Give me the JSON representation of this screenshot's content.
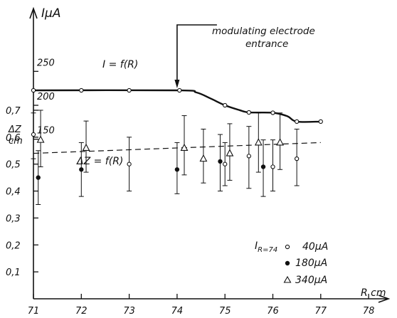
{
  "chart_data": {
    "type": "scatter",
    "x_axis": {
      "label": "R cm",
      "ticks": [
        "71",
        "72",
        "73",
        "74",
        "75",
        "76",
        "77",
        "78"
      ],
      "range": [
        71,
        78
      ]
    },
    "current_axis": {
      "label": "IμA",
      "ticks": [
        "150",
        "200",
        "250"
      ],
      "range": [
        140,
        262
      ]
    },
    "dz_axis": {
      "label_line1": "ΔZ",
      "label_line2": "cm",
      "ticks": [
        "0,1",
        "0,2",
        "0,3",
        "0,4",
        "0,5",
        "0,6",
        "0,7"
      ],
      "range": [
        0,
        0.7
      ]
    },
    "annotations": {
      "current_curve": "I = f(R)",
      "dz_curve": "ΔZ = f(R)",
      "arrow_line1": "modulating electrode",
      "arrow_line2": "entrance",
      "arrow_x": 74
    },
    "current_series": {
      "name": "I = f(R)",
      "points": [
        {
          "x": 71,
          "y": 222
        },
        {
          "x": 72,
          "y": 222
        },
        {
          "x": 73,
          "y": 222
        },
        {
          "x": 74.05,
          "y": 222
        },
        {
          "x": 75,
          "y": 200
        },
        {
          "x": 75.5,
          "y": 189.5
        },
        {
          "x": 76,
          "y": 189
        },
        {
          "x": 76.5,
          "y": 176
        },
        {
          "x": 77,
          "y": 176
        }
      ],
      "curve": [
        [
          71,
          222
        ],
        [
          74,
          222
        ],
        [
          74.4,
          219
        ],
        [
          74.7,
          210
        ],
        [
          75,
          200
        ],
        [
          75.3,
          193
        ],
        [
          75.5,
          189.5
        ],
        [
          76,
          189
        ],
        [
          76.3,
          184
        ],
        [
          76.5,
          176
        ],
        [
          77,
          176
        ]
      ]
    },
    "trend": {
      "x": [
        71,
        77
      ],
      "y": [
        0.54,
        0.58
      ]
    },
    "dz_series": [
      {
        "name": "40μA",
        "marker": "circle-open",
        "points": [
          {
            "x": 71,
            "y": 0.61,
            "lo": 0.52,
            "hi": 0.69
          },
          {
            "x": 73,
            "y": 0.5,
            "lo": 0.4,
            "hi": 0.6
          },
          {
            "x": 75,
            "y": 0.5,
            "lo": 0.42,
            "hi": 0.58
          },
          {
            "x": 75.5,
            "y": 0.53,
            "lo": 0.41,
            "hi": 0.64
          },
          {
            "x": 76,
            "y": 0.49,
            "lo": 0.4,
            "hi": 0.59
          },
          {
            "x": 76.5,
            "y": 0.52,
            "lo": 0.42,
            "hi": 0.63
          }
        ]
      },
      {
        "name": "180μA",
        "marker": "circle-filled",
        "points": [
          {
            "x": 71.1,
            "y": 0.45,
            "lo": 0.35,
            "hi": 0.55
          },
          {
            "x": 72,
            "y": 0.48,
            "lo": 0.38,
            "hi": 0.58
          },
          {
            "x": 74,
            "y": 0.48,
            "lo": 0.39,
            "hi": 0.58
          },
          {
            "x": 74.9,
            "y": 0.51,
            "lo": 0.4,
            "hi": 0.61
          },
          {
            "x": 75.8,
            "y": 0.49,
            "lo": 0.38,
            "hi": 0.59
          }
        ]
      },
      {
        "name": "340μA",
        "marker": "triangle-open",
        "points": [
          {
            "x": 71.15,
            "y": 0.59,
            "lo": 0.49,
            "hi": 0.7
          },
          {
            "x": 72.1,
            "y": 0.56,
            "lo": 0.47,
            "hi": 0.66
          },
          {
            "x": 74.15,
            "y": 0.56,
            "lo": 0.46,
            "hi": 0.68
          },
          {
            "x": 74.55,
            "y": 0.52,
            "lo": 0.43,
            "hi": 0.63
          },
          {
            "x": 75.1,
            "y": 0.54,
            "lo": 0.44,
            "hi": 0.65
          },
          {
            "x": 75.7,
            "y": 0.58,
            "lo": 0.47,
            "hi": 0.69
          },
          {
            "x": 76.15,
            "y": 0.58,
            "lo": 0.48,
            "hi": 0.69
          }
        ]
      }
    ],
    "legend": {
      "title": "I",
      "title_subscript": "R=74",
      "entries": [
        "40μA",
        "180μA",
        "340μA"
      ]
    }
  }
}
